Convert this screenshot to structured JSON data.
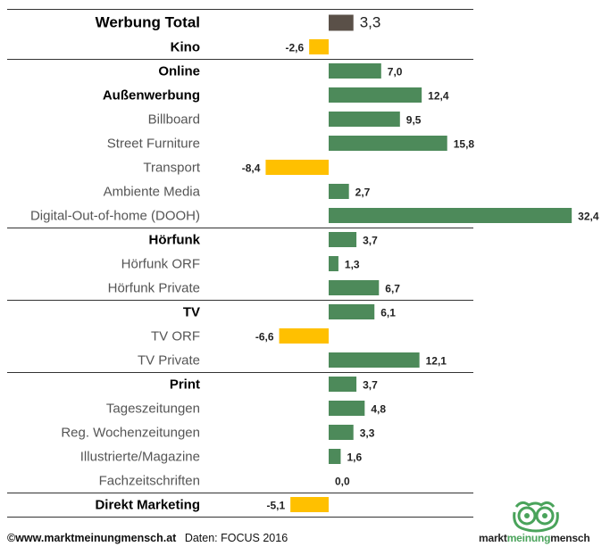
{
  "chart_data": {
    "type": "bar",
    "orientation": "horizontal",
    "categories": [
      "Werbung Total",
      "Kino",
      "Online",
      "Außenwerbung",
      "Billboard",
      "Street Furniture",
      "Transport",
      "Ambiente Media",
      "Digital-Out-of-home (DOOH)",
      "Hörfunk",
      "Hörfunk ORF",
      "Hörfunk Private",
      "TV",
      "TV ORF",
      "TV Private",
      "Print",
      "Tageszeitungen",
      "Reg. Wochenzeitungen",
      "Illustrierte/Magazine",
      "Fachzeitschriften",
      "Direkt Marketing"
    ],
    "values": [
      3.3,
      -2.6,
      7.0,
      12.4,
      9.5,
      15.8,
      -8.4,
      2.7,
      32.4,
      3.7,
      1.3,
      6.7,
      6.1,
      -6.6,
      12.1,
      3.7,
      4.8,
      3.3,
      1.6,
      0.0,
      -5.1
    ],
    "value_labels": [
      "3,3",
      "-2,6",
      "7,0",
      "12,4",
      "9,5",
      "15,8",
      "-8,4",
      "2,7",
      "32,4",
      "3,7",
      "1,3",
      "6,7",
      "6,1",
      "-6,6",
      "12,1",
      "3,7",
      "4,8",
      "3,3",
      "1,6",
      "0,0",
      "-5,1"
    ],
    "bold_categories": [
      "Werbung Total",
      "Kino",
      "Online",
      "Außenwerbung",
      "Hörfunk",
      "TV",
      "Print",
      "Direkt Marketing"
    ],
    "group_separators_after": [
      "Kino",
      "Digital-Out-of-home (DOOH)",
      "Hörfunk Private",
      "TV Private",
      "Fachzeitschriften",
      "Direkt Marketing"
    ],
    "colors": {
      "total": "#5a5048",
      "positive": "#4d8a5a",
      "negative": "#ffc000"
    },
    "xlim": [
      -8.4,
      32.4
    ],
    "grid": false,
    "title": ""
  },
  "footer": {
    "copyright": "©www.marktmeinungmensch.at",
    "source": "Daten: FOCUS 2016"
  },
  "logo": {
    "part1": "markt",
    "part2": "meinung",
    "part3": "mensch"
  }
}
